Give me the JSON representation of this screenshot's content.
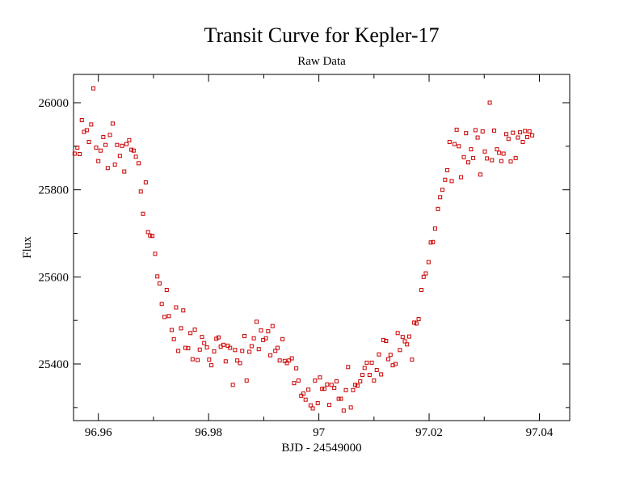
{
  "chart_data": {
    "type": "scatter",
    "title": "Transit Curve for Kepler-17",
    "subtitle": "Raw Data",
    "xlabel": "BJD - 24549000",
    "ylabel": "Flux",
    "xlim": [
      96.9555,
      97.0455
    ],
    "ylim": [
      25270,
      26065
    ],
    "xticks": [
      {
        "value": 96.96,
        "label": "96.96"
      },
      {
        "value": 96.98,
        "label": "96.98"
      },
      {
        "value": 97.0,
        "label": "97"
      },
      {
        "value": 97.02,
        "label": "97.02"
      },
      {
        "value": 97.04,
        "label": "97.04"
      }
    ],
    "yticks": [
      {
        "value": 25400,
        "label": "25400"
      },
      {
        "value": 25600,
        "label": "25600"
      },
      {
        "value": 25800,
        "label": "25800"
      },
      {
        "value": 26000,
        "label": "26000"
      }
    ],
    "x_minor_step": 0.01,
    "y_minor_step": 100,
    "grid": false,
    "marker": "open-square",
    "color": "#cc0000",
    "points": [
      [
        96.9557,
        25883
      ],
      [
        96.9562,
        25897
      ],
      [
        96.9566,
        25882
      ],
      [
        96.957,
        25960
      ],
      [
        96.9574,
        25933
      ],
      [
        96.9579,
        25937
      ],
      [
        96.9583,
        25910
      ],
      [
        96.9587,
        25950
      ],
      [
        96.9591,
        26033
      ],
      [
        96.9596,
        25897
      ],
      [
        96.96,
        25866
      ],
      [
        96.9604,
        25890
      ],
      [
        96.9609,
        25921
      ],
      [
        96.9613,
        25903
      ],
      [
        96.9617,
        25850
      ],
      [
        96.9621,
        25926
      ],
      [
        96.9626,
        25952
      ],
      [
        96.963,
        25858
      ],
      [
        96.9634,
        25903
      ],
      [
        96.9639,
        25878
      ],
      [
        96.9643,
        25901
      ],
      [
        96.9647,
        25842
      ],
      [
        96.9651,
        25905
      ],
      [
        96.9656,
        25914
      ],
      [
        96.966,
        25892
      ],
      [
        96.9664,
        25890
      ],
      [
        96.9668,
        25876
      ],
      [
        96.9673,
        25861
      ],
      [
        96.9677,
        25796
      ],
      [
        96.9681,
        25745
      ],
      [
        96.9686,
        25817
      ],
      [
        96.969,
        25703
      ],
      [
        96.9694,
        25695
      ],
      [
        96.9698,
        25694
      ],
      [
        96.9703,
        25653
      ],
      [
        96.9707,
        25601
      ],
      [
        96.9711,
        25585
      ],
      [
        96.9715,
        25538
      ],
      [
        96.972,
        25508
      ],
      [
        96.9724,
        25570
      ],
      [
        96.9728,
        25510
      ],
      [
        96.9733,
        25478
      ],
      [
        96.9737,
        25457
      ],
      [
        96.9741,
        25530
      ],
      [
        96.9745,
        25430
      ],
      [
        96.975,
        25482
      ],
      [
        96.9754,
        25523
      ],
      [
        96.9758,
        25437
      ],
      [
        96.9763,
        25436
      ],
      [
        96.9767,
        25471
      ],
      [
        96.9771,
        25411
      ],
      [
        96.9775,
        25479
      ],
      [
        96.978,
        25409
      ],
      [
        96.9784,
        25433
      ],
      [
        96.9788,
        25462
      ],
      [
        96.9792,
        25448
      ],
      [
        96.9797,
        25438
      ],
      [
        96.9801,
        25410
      ],
      [
        96.9805,
        25397
      ],
      [
        96.981,
        25429
      ],
      [
        96.9814,
        25458
      ],
      [
        96.9818,
        25461
      ],
      [
        96.9822,
        25440
      ],
      [
        96.9827,
        25444
      ],
      [
        96.9831,
        25406
      ],
      [
        96.9835,
        25442
      ],
      [
        96.9839,
        25437
      ],
      [
        96.9844,
        25352
      ],
      [
        96.9848,
        25432
      ],
      [
        96.9852,
        25408
      ],
      [
        96.9857,
        25402
      ],
      [
        96.9861,
        25430
      ],
      [
        96.9865,
        25464
      ],
      [
        96.9869,
        25362
      ],
      [
        96.9874,
        25428
      ],
      [
        96.9878,
        25441
      ],
      [
        96.9882,
        25459
      ],
      [
        96.9887,
        25497
      ],
      [
        96.9891,
        25434
      ],
      [
        96.9895,
        25477
      ],
      [
        96.9899,
        25455
      ],
      [
        96.9904,
        25459
      ],
      [
        96.9908,
        25475
      ],
      [
        96.9912,
        25420
      ],
      [
        96.9916,
        25487
      ],
      [
        96.9921,
        25430
      ],
      [
        96.9925,
        25437
      ],
      [
        96.9929,
        25408
      ],
      [
        96.9934,
        25457
      ],
      [
        96.9938,
        25407
      ],
      [
        96.9942,
        25402
      ],
      [
        96.9946,
        25408
      ],
      [
        96.9951,
        25413
      ],
      [
        96.9955,
        25356
      ],
      [
        96.9959,
        25390
      ],
      [
        96.9963,
        25362
      ],
      [
        96.9968,
        25327
      ],
      [
        96.9972,
        25332
      ],
      [
        96.9976,
        25318
      ],
      [
        96.9981,
        25341
      ],
      [
        96.9985,
        25305
      ],
      [
        96.9989,
        25298
      ],
      [
        96.9993,
        25362
      ],
      [
        96.9998,
        25310
      ],
      [
        97.0002,
        25369
      ],
      [
        97.0006,
        25343
      ],
      [
        97.001,
        25343
      ],
      [
        97.0015,
        25353
      ],
      [
        97.0019,
        25306
      ],
      [
        97.0023,
        25352
      ],
      [
        97.0028,
        25345
      ],
      [
        97.0032,
        25360
      ],
      [
        97.0036,
        25320
      ],
      [
        97.004,
        25320
      ],
      [
        97.0045,
        25293
      ],
      [
        97.0049,
        25340
      ],
      [
        97.0053,
        25393
      ],
      [
        97.0058,
        25300
      ],
      [
        97.0062,
        25340
      ],
      [
        97.0066,
        25352
      ],
      [
        97.007,
        25350
      ],
      [
        97.0075,
        25360
      ],
      [
        97.0079,
        25375
      ],
      [
        97.0083,
        25391
      ],
      [
        97.0087,
        25403
      ],
      [
        97.0092,
        25375
      ],
      [
        97.0096,
        25403
      ],
      [
        97.01,
        25362
      ],
      [
        97.0105,
        25386
      ],
      [
        97.0109,
        25422
      ],
      [
        97.0113,
        25376
      ],
      [
        97.0117,
        25455
      ],
      [
        97.0122,
        25453
      ],
      [
        97.0126,
        25411
      ],
      [
        97.013,
        25421
      ],
      [
        97.0134,
        25397
      ],
      [
        97.0139,
        25400
      ],
      [
        97.0143,
        25471
      ],
      [
        97.0147,
        25432
      ],
      [
        97.0152,
        25462
      ],
      [
        97.0156,
        25452
      ],
      [
        97.016,
        25445
      ],
      [
        97.0164,
        25463
      ],
      [
        97.0169,
        25410
      ],
      [
        97.0173,
        25495
      ],
      [
        97.0177,
        25493
      ],
      [
        97.0181,
        25503
      ],
      [
        97.0186,
        25570
      ],
      [
        97.019,
        25600
      ],
      [
        97.0194,
        25608
      ],
      [
        97.0199,
        25634
      ],
      [
        97.0203,
        25679
      ],
      [
        97.0207,
        25680
      ],
      [
        97.0211,
        25711
      ],
      [
        97.0216,
        25756
      ],
      [
        97.022,
        25783
      ],
      [
        97.0224,
        25800
      ],
      [
        97.0229,
        25823
      ],
      [
        97.0233,
        25845
      ],
      [
        97.0237,
        25910
      ],
      [
        97.0241,
        25820
      ],
      [
        97.0246,
        25905
      ],
      [
        97.025,
        25938
      ],
      [
        97.0254,
        25900
      ],
      [
        97.0258,
        25829
      ],
      [
        97.0263,
        25875
      ],
      [
        97.0267,
        25930
      ],
      [
        97.0271,
        25863
      ],
      [
        97.0276,
        25893
      ],
      [
        97.028,
        25873
      ],
      [
        97.0284,
        25937
      ],
      [
        97.0288,
        25920
      ],
      [
        97.0293,
        25835
      ],
      [
        97.0297,
        25934
      ],
      [
        97.0301,
        25888
      ],
      [
        97.0305,
        25872
      ],
      [
        97.031,
        26000
      ],
      [
        97.0314,
        25868
      ],
      [
        97.0318,
        25936
      ],
      [
        97.0323,
        25893
      ],
      [
        97.0327,
        25885
      ],
      [
        97.0331,
        25866
      ],
      [
        97.0335,
        25883
      ],
      [
        97.034,
        25928
      ],
      [
        97.0344,
        25917
      ],
      [
        97.0348,
        25865
      ],
      [
        97.0352,
        25931
      ],
      [
        97.0357,
        25873
      ],
      [
        97.0361,
        25920
      ],
      [
        97.0365,
        25932
      ],
      [
        97.037,
        25910
      ],
      [
        97.0374,
        25935
      ],
      [
        97.0378,
        25921
      ],
      [
        97.0382,
        25934
      ],
      [
        97.0387,
        25925
      ]
    ]
  }
}
